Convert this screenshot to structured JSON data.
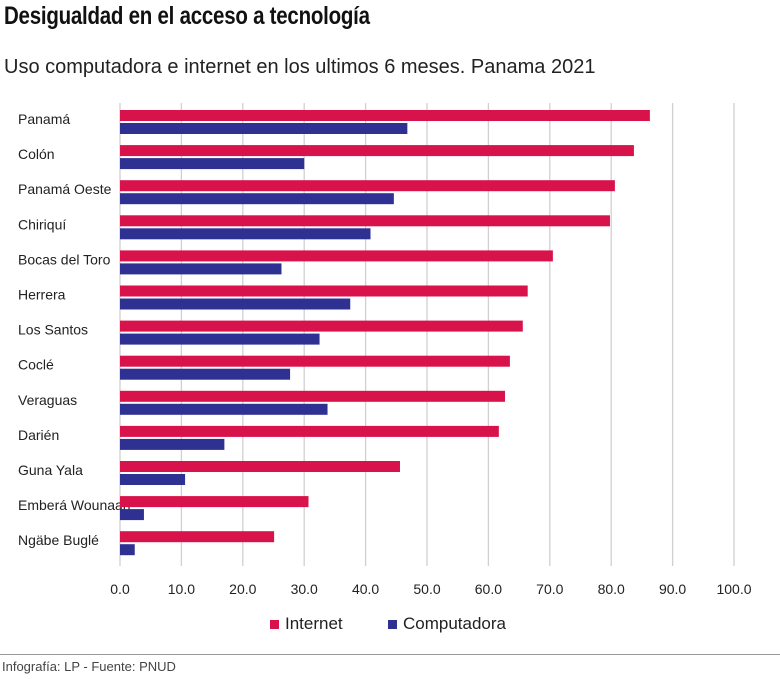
{
  "chart_data": {
    "type": "bar",
    "orientation": "horizontal",
    "title": "Desigualdad en el acceso a tecnología",
    "subtitle": "Uso computadora e internet en los ultimos 6 meses. Panama 2021",
    "categories": [
      "Panamá",
      "Colón",
      "Panamá Oeste",
      "Chiriquí",
      "Bocas del Toro",
      "Herrera",
      "Los Santos",
      "Coclé",
      "Veraguas",
      "Darién",
      "Guna Yala",
      "Emberá Wounaan",
      "Ngäbe Buglé"
    ],
    "series": [
      {
        "name": "Internet",
        "color": "#d8124a",
        "values": [
          86.3,
          83.7,
          80.6,
          79.8,
          70.5,
          66.4,
          65.6,
          63.5,
          62.7,
          61.7,
          45.6,
          30.7,
          25.1
        ]
      },
      {
        "name": "Computadora",
        "color": "#2e3192",
        "values": [
          46.8,
          30.0,
          44.6,
          40.8,
          26.3,
          37.5,
          32.5,
          27.7,
          33.8,
          17.0,
          10.6,
          3.9,
          2.4
        ]
      }
    ],
    "xlim": [
      0,
      100
    ],
    "xticks": [
      "0.0",
      "10.0",
      "20.0",
      "30.0",
      "40.0",
      "50.0",
      "60.0",
      "70.0",
      "80.0",
      "90.0",
      "100.0"
    ],
    "grid": true,
    "legend_position": "bottom"
  },
  "footer": "Infografía: LP - Fuente: PNUD"
}
